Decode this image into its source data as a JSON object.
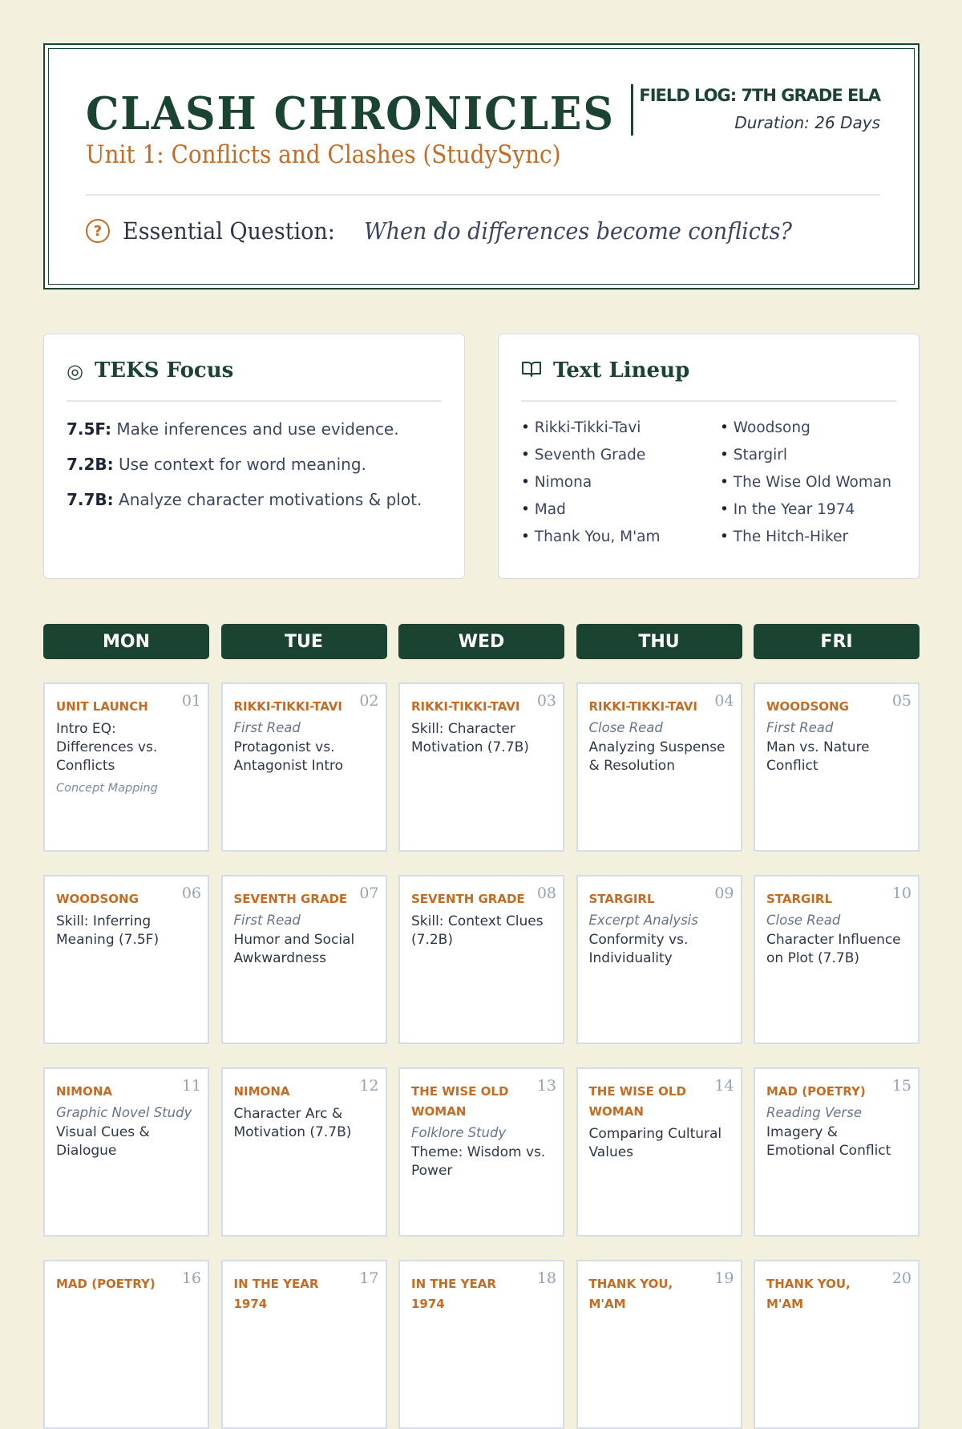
{
  "header": {
    "title": "CLASH CHRONICLES",
    "subtitle": "Unit 1: Conflicts and Clashes (StudySync)",
    "field_log": "FIELD LOG: 7TH GRADE ELA",
    "duration": "Duration: 26 Days",
    "eq_icon": "question-circle-icon",
    "eq_label": "Essential Question:",
    "eq_text": "When do differences become conflicts?"
  },
  "teks": {
    "title": "TEKS Focus",
    "icon": "target-icon",
    "items": [
      {
        "code": "7.5F:",
        "text": "Make inferences and use evidence."
      },
      {
        "code": "7.2B:",
        "text": "Use context for word meaning."
      },
      {
        "code": "7.7B:",
        "text": "Analyze character motivations & plot."
      }
    ]
  },
  "lineup": {
    "title": "Text Lineup",
    "icon": "book-open-icon",
    "items": [
      "Rikki-Tikki-Tavi",
      "Woodsong",
      "Seventh Grade",
      "Stargirl",
      "Nimona",
      "The Wise Old Woman",
      "Mad",
      "In the Year 1974",
      "Thank You, M'am",
      "The Hitch-Hiker"
    ]
  },
  "days": [
    "MON",
    "TUE",
    "WED",
    "THU",
    "FRI"
  ],
  "colors": {
    "green": "#1b4332",
    "orange": "#c46c24",
    "background": "#f4f0de"
  },
  "cards": [
    {
      "tag": "Unit Launch",
      "num": "01",
      "desc": "Intro EQ: Differences vs. Conflicts",
      "note": "Concept Mapping"
    },
    {
      "tag": "Rikki-Tikki-Tavi",
      "num": "02",
      "mode": "First Read",
      "desc": "Protagonist vs. Antagonist Intro"
    },
    {
      "tag": "Rikki-Tikki-Tavi",
      "num": "03",
      "desc": "Skill: Character Motivation (7.7B)"
    },
    {
      "tag": "Rikki-Tikki-Tavi",
      "num": "04",
      "mode": "Close Read",
      "desc": "Analyzing Suspense & Resolution"
    },
    {
      "tag": "Woodsong",
      "num": "05",
      "mode": "First Read",
      "desc": "Man vs. Nature Conflict"
    },
    {
      "tag": "Woodsong",
      "num": "06",
      "desc": "Skill: Inferring Meaning (7.5F)"
    },
    {
      "tag": "Seventh Grade",
      "num": "07",
      "mode": "First Read",
      "desc": "Humor and Social Awkwardness"
    },
    {
      "tag": "Seventh Grade",
      "num": "08",
      "desc": "Skill: Context Clues (7.2B)"
    },
    {
      "tag": "Stargirl",
      "num": "09",
      "mode": "Excerpt Analysis",
      "desc": "Conformity vs. Individuality"
    },
    {
      "tag": "Stargirl",
      "num": "10",
      "mode": "Close Read",
      "desc": "Character Influence on Plot (7.7B)"
    },
    {
      "tag": "Nimona",
      "num": "11",
      "mode": "Graphic Novel Study",
      "desc": "Visual Cues & Dialogue"
    },
    {
      "tag": "Nimona",
      "num": "12",
      "desc": "Character Arc & Motivation (7.7B)"
    },
    {
      "tag": "The Wise Old Woman",
      "num": "13",
      "mode": "Folklore Study",
      "desc": "Theme: Wisdom vs. Power"
    },
    {
      "tag": "The Wise Old Woman",
      "num": "14",
      "desc": "Comparing Cultural Values"
    },
    {
      "tag": "Mad (Poetry)",
      "num": "15",
      "mode": "Reading Verse",
      "desc": "Imagery & Emotional Conflict"
    },
    {
      "tag": "Mad (Poetry)",
      "num": "16"
    },
    {
      "tag": "In the Year 1974",
      "num": "17"
    },
    {
      "tag": "In the Year 1974",
      "num": "18"
    },
    {
      "tag": "Thank You, M'am",
      "num": "19"
    },
    {
      "tag": "Thank You, M'am",
      "num": "20"
    }
  ]
}
